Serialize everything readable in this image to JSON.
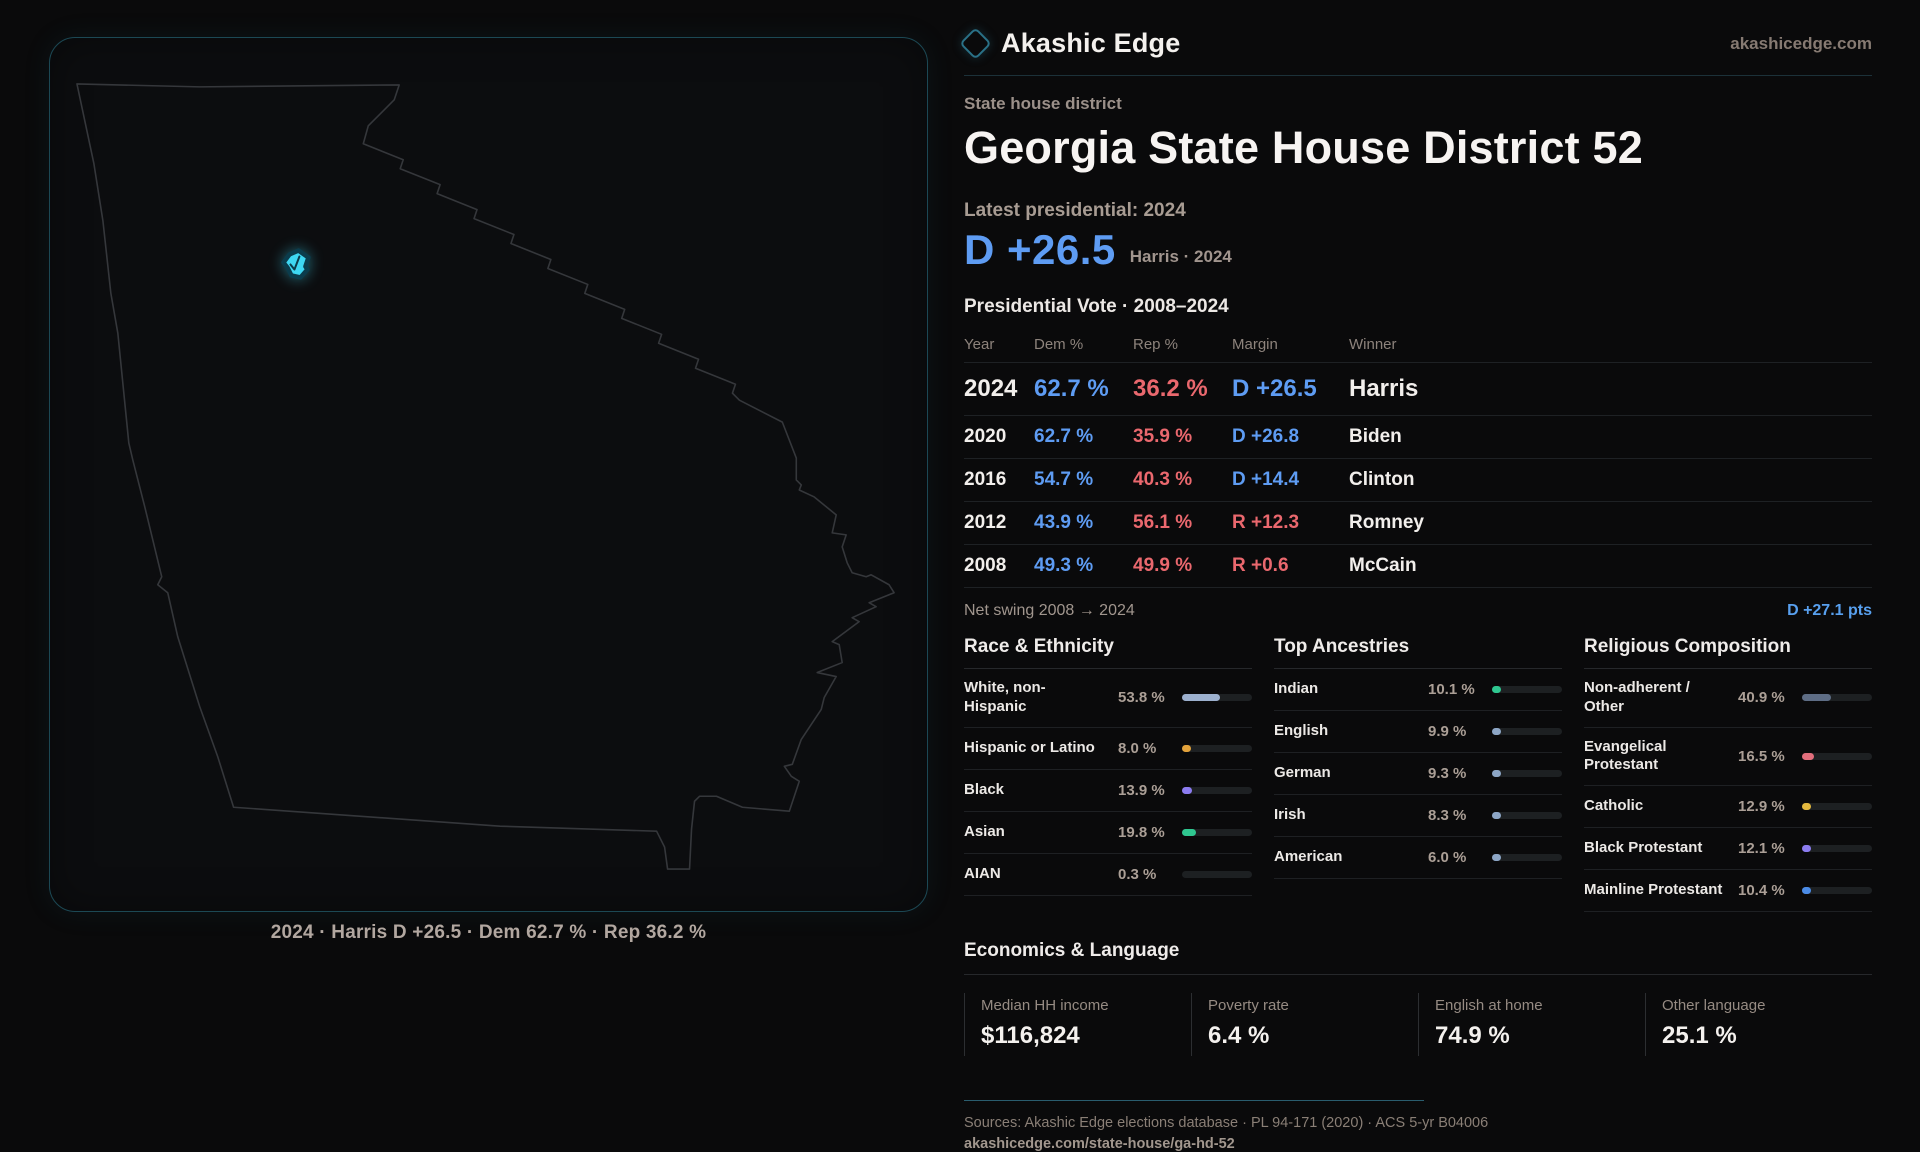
{
  "header": {
    "brand": "Akashic Edge",
    "domain": "akashicedge.com"
  },
  "kicker": "State house district",
  "title": "Georgia State House District 52",
  "hero": {
    "label": "Latest presidential: 2024",
    "margin": "D +26.5",
    "caption": "Harris · 2024"
  },
  "vote_table": {
    "title": "Presidential Vote · 2008–2024",
    "columns": [
      "Year",
      "Dem %",
      "Rep %",
      "Margin",
      "Winner"
    ],
    "rows": [
      {
        "year": "2024",
        "dem": "62.7 %",
        "rep": "36.2 %",
        "margin": "D +26.5",
        "party": "dem",
        "winner": "Harris",
        "emphasis": true
      },
      {
        "year": "2020",
        "dem": "62.7 %",
        "rep": "35.9 %",
        "margin": "D +26.8",
        "party": "dem",
        "winner": "Biden",
        "emphasis": false
      },
      {
        "year": "2016",
        "dem": "54.7 %",
        "rep": "40.3 %",
        "margin": "D +14.4",
        "party": "dem",
        "winner": "Clinton",
        "emphasis": false
      },
      {
        "year": "2012",
        "dem": "43.9 %",
        "rep": "56.1 %",
        "margin": "R +12.3",
        "party": "rep",
        "winner": "Romney",
        "emphasis": false
      },
      {
        "year": "2008",
        "dem": "49.3 %",
        "rep": "49.9 %",
        "margin": "R +0.6",
        "party": "rep",
        "winner": "McCain",
        "emphasis": false
      }
    ]
  },
  "net_swing": {
    "label": "Net swing 2008 → 2024",
    "value": "D +27.1 pts"
  },
  "demographics": [
    {
      "id": "race",
      "title": "Race & Ethnicity",
      "rows": [
        {
          "label": "White, non-\nHispanic",
          "value": "53.8 %",
          "pct": 53.8,
          "color": "#9cb0ce"
        },
        {
          "label": "Hispanic or Latino",
          "value": "8.0 %",
          "pct": 8.0,
          "color": "#e2a23b"
        },
        {
          "label": "Black",
          "value": "13.9 %",
          "pct": 13.9,
          "color": "#8c7cf0"
        },
        {
          "label": "Asian",
          "value": "19.8 %",
          "pct": 19.8,
          "color": "#2fc790"
        },
        {
          "label": "AIAN",
          "value": "0.3 %",
          "pct": 0.3,
          "color": "#9cb0ce"
        }
      ]
    },
    {
      "id": "ancestry",
      "title": "Top Ancestries",
      "rows": [
        {
          "label": "Indian",
          "value": "10.1 %",
          "pct": 10.1,
          "color": "#2fc790"
        },
        {
          "label": "English",
          "value": "9.9 %",
          "pct": 9.9,
          "color": "#8da6c6"
        },
        {
          "label": "German",
          "value": "9.3 %",
          "pct": 9.3,
          "color": "#8da6c6"
        },
        {
          "label": "Irish",
          "value": "8.3 %",
          "pct": 8.3,
          "color": "#8da6c6"
        },
        {
          "label": "American",
          "value": "6.0 %",
          "pct": 6.0,
          "color": "#8da6c6"
        }
      ]
    },
    {
      "id": "religion",
      "title": "Religious Composition",
      "rows": [
        {
          "label": "Non-adherent /\nOther",
          "value": "40.9 %",
          "pct": 40.9,
          "color": "#5e6d85"
        },
        {
          "label": "Evangelical\nProtestant",
          "value": "16.5 %",
          "pct": 16.5,
          "color": "#e26e7c"
        },
        {
          "label": "Catholic",
          "value": "12.9 %",
          "pct": 12.9,
          "color": "#e3b83e"
        },
        {
          "label": "Black Protestant",
          "value": "12.1 %",
          "pct": 12.1,
          "color": "#8c7cf0"
        },
        {
          "label": "Mainline Protestant",
          "value": "10.4 %",
          "pct": 10.4,
          "color": "#4b8be6"
        }
      ]
    }
  ],
  "economics": {
    "title": "Economics & Language",
    "stats": [
      {
        "label": "Median HH income",
        "value": "$116,824"
      },
      {
        "label": "Poverty rate",
        "value": "6.4 %"
      },
      {
        "label": "English at home",
        "value": "74.9 %"
      },
      {
        "label": "Other language",
        "value": "25.1 %"
      }
    ]
  },
  "footer": {
    "sources": "Sources: Akashic Edge elections database · PL 94-171 (2020) · ACS 5-yr B04006",
    "url": "akashicedge.com/state-house/ga-hd-52"
  },
  "map": {
    "caption": "2024 · Harris D +26.5 · Dem 62.7 % · Rep 36.2 %",
    "outline_color": "#35373b",
    "marker_fill": "#3ed7f2",
    "marker_stroke": "#0b3c4c",
    "panel_border": "#1c4854"
  },
  "colors": {
    "dem_blue": "#5e9cf3",
    "rep_red": "#ea686e",
    "accent_teal": "#2a7187"
  }
}
